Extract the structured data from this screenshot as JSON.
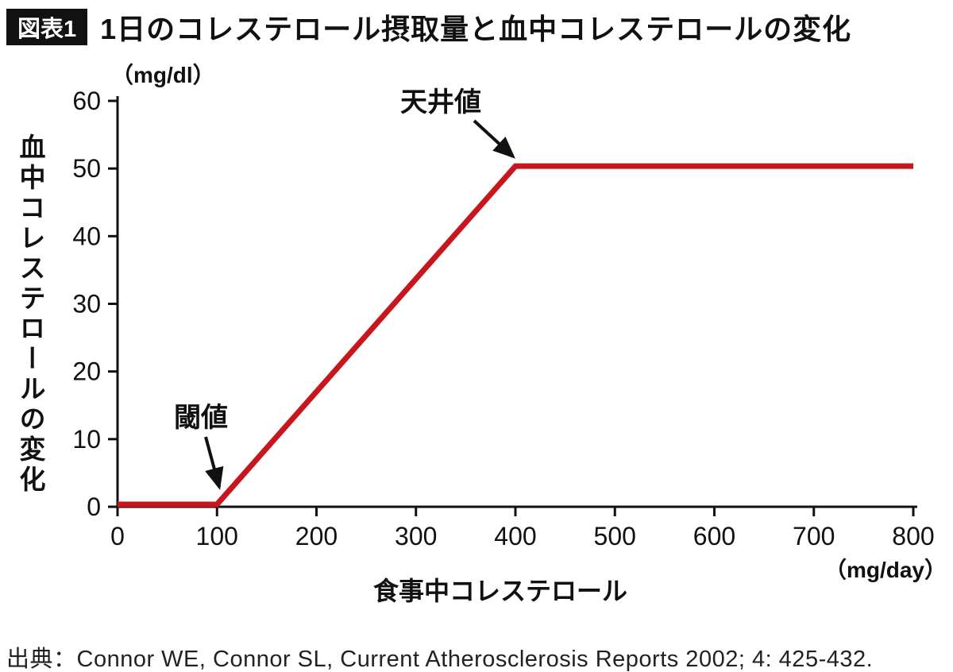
{
  "header": {
    "badge": "図表1",
    "title": "1日のコレステロール摂取量と血中コレステロールの変化"
  },
  "chart_data": {
    "type": "line",
    "title": "1日のコレステロール摂取量と血中コレステロールの変化",
    "xlabel": "食事中コレステロール",
    "ylabel": "血中コレステロールの変化",
    "x_unit": "（mg/day）",
    "y_unit": "（mg/dl）",
    "xlim": [
      0,
      800
    ],
    "ylim": [
      0,
      60
    ],
    "x_ticks": [
      0,
      100,
      200,
      300,
      400,
      500,
      600,
      700,
      800
    ],
    "y_ticks": [
      0,
      10,
      20,
      30,
      40,
      50,
      60
    ],
    "grid": false,
    "legend": false,
    "axis_color": "#111111",
    "series": [
      {
        "name": "血中コレステロールの変化",
        "color": "#c8161e",
        "points": [
          [
            0,
            0
          ],
          [
            100,
            0
          ],
          [
            400,
            50
          ],
          [
            800,
            50
          ]
        ]
      }
    ],
    "annotations": [
      {
        "label": "天井値",
        "target_x": 400,
        "target_y": 50
      },
      {
        "label": "閾値",
        "target_x": 100,
        "target_y": 0
      }
    ]
  },
  "source": "出典：Connor WE, Connor SL, Current Atherosclerosis Reports 2002; 4: 425-432."
}
